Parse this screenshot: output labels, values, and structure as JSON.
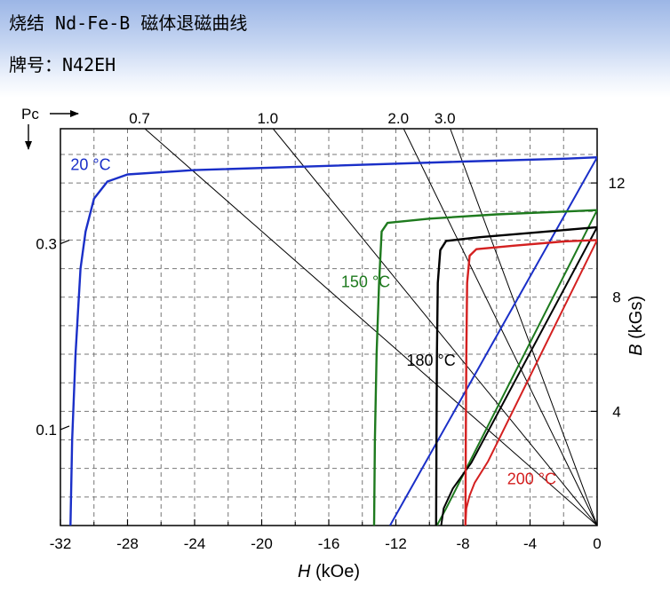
{
  "header": {
    "title": "烧结 Nd-Fe-B 磁体退磁曲线",
    "grade": "牌号：N42EH"
  },
  "chart_data": {
    "type": "line",
    "title": "",
    "xlabel": "H (kOe)",
    "x_ticks": [
      "-32",
      "-28",
      "-24",
      "-20",
      "-16",
      "-12",
      "-8",
      "-4",
      "0"
    ],
    "xlim": [
      -32,
      0
    ],
    "y_right_label": "B (kGs)",
    "y_right_ticks": [
      "4",
      "8",
      "12"
    ],
    "ylim": [
      0,
      13.9
    ],
    "pc_label": "Pc",
    "pc_left_ticks": [
      {
        "label": "0.3",
        "b": 9.87
      },
      {
        "label": "0.1",
        "b": 3.36
      }
    ],
    "load_lines": [
      {
        "label": "0.7",
        "slope": 0.7
      },
      {
        "label": "1.0",
        "slope": 1.0
      },
      {
        "label": "2.0",
        "slope": 2.0
      },
      {
        "label": "3.0",
        "slope": 3.0
      }
    ],
    "grid": true,
    "series": [
      {
        "name": "20 °C",
        "color": "#1a2fc8",
        "label_at": [
          -30.2,
          12.45
        ],
        "intrinsic": [
          [
            -31.4,
            0
          ],
          [
            -31.3,
            3
          ],
          [
            -31.1,
            6
          ],
          [
            -30.8,
            9
          ],
          [
            -30.5,
            10.3
          ],
          [
            -30.0,
            11.45
          ],
          [
            -29.2,
            12.05
          ],
          [
            -28.0,
            12.3
          ],
          [
            -24,
            12.45
          ],
          [
            -16,
            12.6
          ],
          [
            -8,
            12.75
          ],
          [
            -2,
            12.85
          ],
          [
            0,
            12.9
          ]
        ],
        "normal": [
          [
            -12.35,
            0
          ],
          [
            0,
            12.9
          ]
        ]
      },
      {
        "name": "150 °C",
        "color": "#1e7a1e",
        "label_at": [
          -13.8,
          8.35
        ],
        "intrinsic": [
          [
            -13.3,
            0
          ],
          [
            -13.25,
            3
          ],
          [
            -13.15,
            6
          ],
          [
            -13.0,
            8.5
          ],
          [
            -12.85,
            10.3
          ],
          [
            -12.5,
            10.6
          ],
          [
            -10.0,
            10.75
          ],
          [
            -6,
            10.9
          ],
          [
            -2,
            11.0
          ],
          [
            0,
            11.05
          ]
        ],
        "normal": [
          [
            -9.55,
            0
          ],
          [
            -9.0,
            0.6
          ],
          [
            0,
            11.05
          ]
        ]
      },
      {
        "name": "180 °C",
        "color": "#000000",
        "label_at": [
          -9.9,
          5.6
        ],
        "intrinsic": [
          [
            -9.6,
            0
          ],
          [
            -9.58,
            3
          ],
          [
            -9.55,
            6
          ],
          [
            -9.5,
            8.5
          ],
          [
            -9.35,
            9.65
          ],
          [
            -9.0,
            9.97
          ],
          [
            -7,
            10.1
          ],
          [
            -4,
            10.25
          ],
          [
            -1,
            10.4
          ],
          [
            0,
            10.45
          ]
        ],
        "normal": [
          [
            -9.3,
            0
          ],
          [
            -9.15,
            0.6
          ],
          [
            -8.6,
            1.3
          ],
          [
            -7.5,
            2.2
          ],
          [
            0,
            10.45
          ]
        ]
      },
      {
        "name": "200 °C",
        "color": "#d42020",
        "label_at": [
          -3.9,
          1.45
        ],
        "intrinsic": [
          [
            -7.85,
            0
          ],
          [
            -7.83,
            3
          ],
          [
            -7.8,
            6
          ],
          [
            -7.75,
            8.5
          ],
          [
            -7.6,
            9.45
          ],
          [
            -7.2,
            9.68
          ],
          [
            -5,
            9.8
          ],
          [
            -2,
            9.95
          ],
          [
            0,
            10.0
          ]
        ],
        "normal": [
          [
            -7.85,
            0
          ],
          [
            -7.8,
            0.6
          ],
          [
            -7.6,
            1.05
          ],
          [
            -7.3,
            1.5
          ],
          [
            -6.5,
            2.25
          ],
          [
            0,
            10.0
          ]
        ]
      }
    ]
  }
}
